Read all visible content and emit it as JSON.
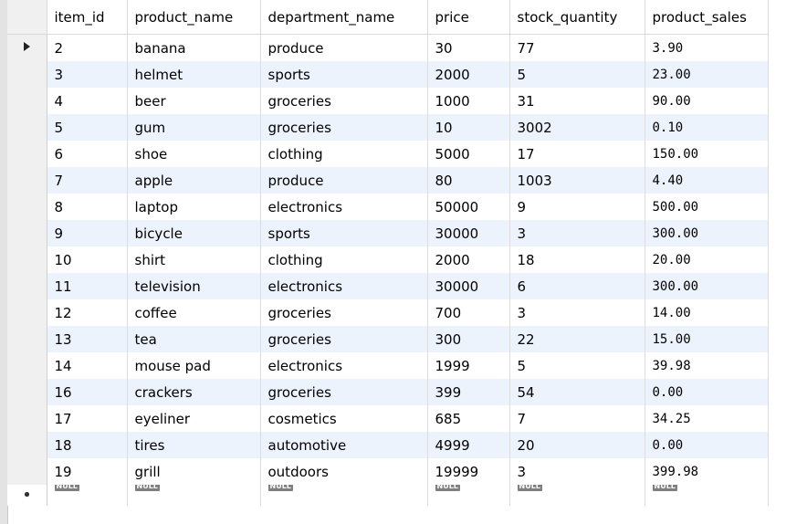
{
  "columns": [
    "item_id",
    "product_name",
    "department_name",
    "price",
    "stock_quantity",
    "product_sales"
  ],
  "rows": [
    [
      "2",
      "banana",
      "produce",
      "30",
      "77",
      "3.90"
    ],
    [
      "3",
      "helmet",
      "sports",
      "2000",
      "5",
      "23.00"
    ],
    [
      "4",
      "beer",
      "groceries",
      "1000",
      "31",
      "90.00"
    ],
    [
      "5",
      "gum",
      "groceries",
      "10",
      "3002",
      "0.10"
    ],
    [
      "6",
      "shoe",
      "clothing",
      "5000",
      "17",
      "150.00"
    ],
    [
      "7",
      "apple",
      "produce",
      "80",
      "1003",
      "4.40"
    ],
    [
      "8",
      "laptop",
      "electronics",
      "50000",
      "9",
      "500.00"
    ],
    [
      "9",
      "bicycle",
      "sports",
      "30000",
      "3",
      "300.00"
    ],
    [
      "10",
      "shirt",
      "clothing",
      "2000",
      "18",
      "20.00"
    ],
    [
      "11",
      "television",
      "electronics",
      "30000",
      "6",
      "300.00"
    ],
    [
      "12",
      "coffee",
      "groceries",
      "700",
      "3",
      "14.00"
    ],
    [
      "13",
      "tea",
      "groceries",
      "300",
      "22",
      "15.00"
    ],
    [
      "14",
      "mouse pad",
      "electronics",
      "1999",
      "5",
      "39.98"
    ],
    [
      "16",
      "crackers",
      "groceries",
      "399",
      "54",
      "0.00"
    ],
    [
      "17",
      "eyeliner",
      "cosmetics",
      "685",
      "7",
      "34.25"
    ],
    [
      "18",
      "tires",
      "automotive",
      "4999",
      "20",
      "0.00"
    ],
    [
      "19",
      "grill",
      "outdoors",
      "19999",
      "3",
      "399.98"
    ]
  ],
  "new_row": [
    "NULL",
    "NULL",
    "NULL",
    "NULL",
    "NULL",
    "NULL"
  ],
  "icons": {
    "current_row": "triangle-right-icon",
    "new_row": "asterisk-icon"
  },
  "colors": {
    "row_alt": "#edf3fc",
    "null_badge": "#7f7f7f"
  }
}
